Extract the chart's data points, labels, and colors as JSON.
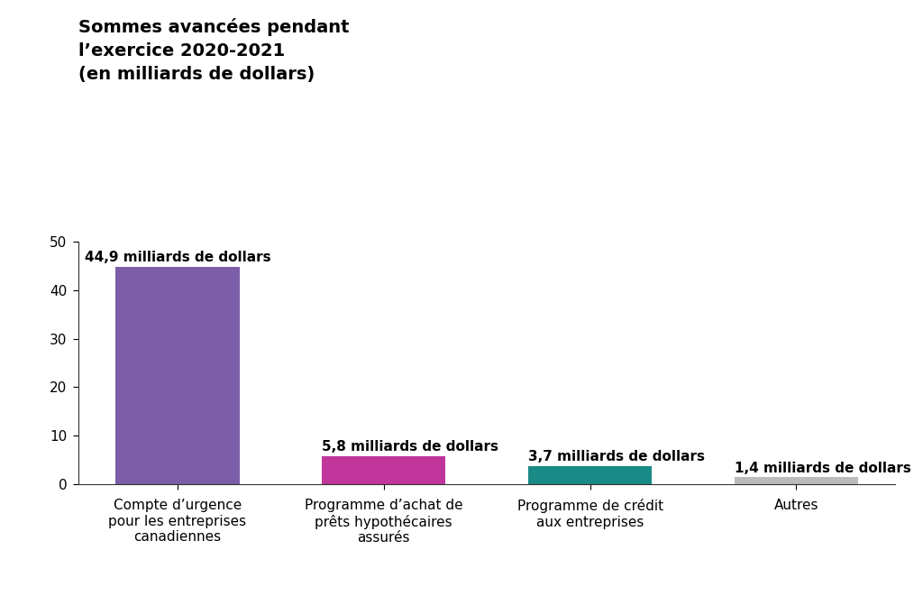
{
  "title_line1": "Sommes avancées pendant",
  "title_line2": "l’exercice 2020-2021",
  "title_line3": "(en milliards de dollars)",
  "categories": [
    "Compte d’urgence\npour les entreprises\ncanadiennes",
    "Programme d’achat de\nprêts hypothécaires\nassurés",
    "Programme de crédit\naux entreprises",
    "Autres"
  ],
  "values": [
    44.9,
    5.8,
    3.7,
    1.4
  ],
  "bar_colors": [
    "#7B5EA7",
    "#C0369A",
    "#1A8A87",
    "#BBBBBB"
  ],
  "labels": [
    "44,9 milliards de dollars",
    "5,8 milliards de dollars",
    "3,7 milliards de dollars",
    "1,4 milliards de dollars"
  ],
  "label_xoffset": [
    0,
    0,
    0,
    0
  ],
  "ylim": [
    0,
    50
  ],
  "yticks": [
    0,
    10,
    20,
    30,
    40,
    50
  ],
  "background_color": "#FFFFFF",
  "title_fontsize": 14,
  "label_fontsize": 11,
  "tick_fontsize": 11,
  "bar_width": 0.6
}
